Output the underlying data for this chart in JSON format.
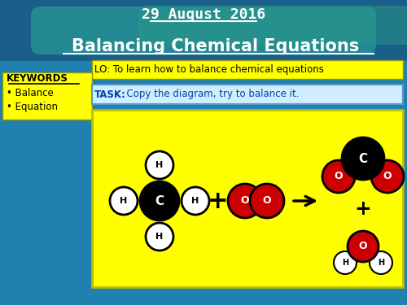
{
  "title_date": "29 August 2016",
  "title_main": "Balancing Chemical Equations",
  "lo_text": "LO: To learn how to balance chemical equations",
  "task_text": "TASK:  Copy the diagram, try to balance it.",
  "keywords_title": "KEYWORDS",
  "keywords_list": [
    "Balance",
    "Equation"
  ],
  "yellow_color": "#ffff00",
  "lo_bg": "#ffff00",
  "task_bg": "#d0eeff",
  "keywords_bg": "#ffff00",
  "red_atom": "#cc0000"
}
